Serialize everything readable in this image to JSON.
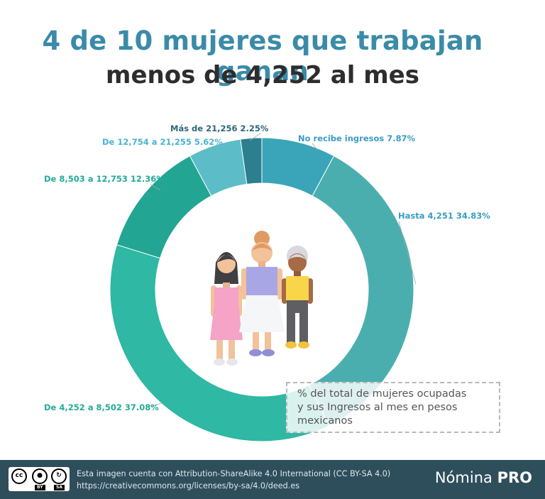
{
  "header": {
    "title_line1": "4 de 10 mujeres que trabajan ganan",
    "title_line2": "menos de 4,252 al mes"
  },
  "chart_data": {
    "type": "pie",
    "variant": "donut",
    "categories": [
      "No recibe ingresos",
      "Hasta 4,251",
      "De 4,252 a 8,502",
      "De 8,503 a 12,753",
      "De 12,754 a 21,255",
      "Más de 21,256"
    ],
    "values": [
      7.87,
      34.83,
      37.08,
      12.36,
      5.62,
      2.25
    ],
    "value_labels": [
      "7.87%",
      "34.83%",
      "37.08%",
      "12.36%",
      "5.62%",
      "2.25%"
    ],
    "colors": [
      "#3aa5b8",
      "#4aaeae",
      "#2fb8a3",
      "#23a593",
      "#5cbdc9",
      "#2b7f8f"
    ],
    "label_colors": [
      "#3a9cc6",
      "#3a9cc6",
      "#24ab98",
      "#24ab98",
      "#4ab3d0",
      "#2c6878"
    ],
    "center_image": "three-women-illustration"
  },
  "note": {
    "line1": "% del total de mujeres ocupadas",
    "line2": "y sus Ingresos al mes en pesos",
    "line3": "mexicanos"
  },
  "footer": {
    "license_line1": "Esta imagen cuenta con Attribution-ShareAlike 4.0 International (CC BY-SA 4.0)",
    "license_line2": "https://creativecommons.org/licenses/by-sa/4.0/deed.es",
    "brand_regular": "Nómina",
    "brand_bold": "PRO",
    "cc_by": "BY",
    "cc_sa": "SA",
    "cc_icon": "creative-commons-icon"
  }
}
